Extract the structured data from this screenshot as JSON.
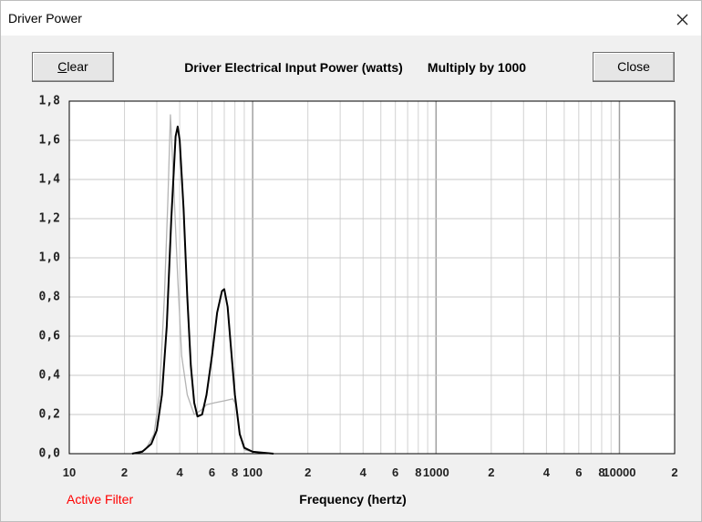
{
  "window": {
    "title": "Driver Power"
  },
  "buttons": {
    "clear": "Clear",
    "close": "Close"
  },
  "status": "Active Filter",
  "chart_data": {
    "type": "line",
    "title": "Driver Electrical Input Power (watts)",
    "multiplier_note": "Multiply by 1000",
    "xlabel": "Frequency (hertz)",
    "xscale": "log",
    "xlim": [
      10,
      20000
    ],
    "xticks": [
      10,
      {
        "value": 20,
        "label": "2"
      },
      {
        "value": 40,
        "label": "4"
      },
      {
        "value": 60,
        "label": "6"
      },
      {
        "value": 80,
        "label": "8"
      },
      100,
      {
        "value": 200,
        "label": "2"
      },
      {
        "value": 400,
        "label": "4"
      },
      {
        "value": 600,
        "label": "6"
      },
      {
        "value": 800,
        "label": "8"
      },
      1000,
      {
        "value": 2000,
        "label": "2"
      },
      {
        "value": 4000,
        "label": "4"
      },
      {
        "value": 6000,
        "label": "6"
      },
      {
        "value": 8000,
        "label": "8"
      },
      10000,
      {
        "value": 20000,
        "label": "2"
      }
    ],
    "x_gridlines": [
      20,
      30,
      40,
      50,
      60,
      70,
      80,
      90,
      100,
      200,
      300,
      400,
      500,
      600,
      700,
      800,
      900,
      1000,
      2000,
      3000,
      4000,
      5000,
      6000,
      7000,
      8000,
      9000,
      10000
    ],
    "major_x_gridlines": [
      100,
      1000,
      10000
    ],
    "ylim": [
      0,
      1.8
    ],
    "yticks": [
      {
        "value": 0,
        "label": "0,0"
      },
      {
        "value": 0.2,
        "label": "0,2"
      },
      {
        "value": 0.4,
        "label": "0,4"
      },
      {
        "value": 0.6,
        "label": "0,6"
      },
      {
        "value": 0.8,
        "label": "0,8"
      },
      {
        "value": 1.0,
        "label": "1,0"
      },
      {
        "value": 1.2,
        "label": "1,2"
      },
      {
        "value": 1.4,
        "label": "1,4"
      },
      {
        "value": 1.6,
        "label": "1,6"
      },
      {
        "value": 1.8,
        "label": "1,8"
      }
    ],
    "grid": true,
    "series": [
      {
        "color": "#b4b4b4",
        "x": [
          22,
          26,
          29,
          31,
          33,
          34.5,
          35.6,
          37,
          39,
          41,
          44,
          48,
          52,
          56,
          62,
          70,
          78,
          81,
          85,
          90,
          100,
          130
        ],
        "values": [
          0,
          0.02,
          0.1,
          0.3,
          0.8,
          1.3,
          1.73,
          1.4,
          0.9,
          0.5,
          0.3,
          0.2,
          0.22,
          0.25,
          0.26,
          0.27,
          0.28,
          0.25,
          0.1,
          0.02,
          0.01,
          0
        ]
      },
      {
        "color": "#000000",
        "x": [
          22,
          25,
          28,
          30,
          32,
          34,
          36,
          38,
          39,
          40,
          42,
          44,
          46,
          48,
          50,
          53,
          56,
          60,
          64,
          68,
          70,
          73,
          76,
          80,
          85,
          90,
          100,
          130
        ],
        "values": [
          0,
          0.01,
          0.05,
          0.12,
          0.3,
          0.65,
          1.2,
          1.62,
          1.67,
          1.6,
          1.25,
          0.8,
          0.45,
          0.26,
          0.19,
          0.2,
          0.3,
          0.5,
          0.72,
          0.83,
          0.84,
          0.75,
          0.55,
          0.3,
          0.1,
          0.03,
          0.01,
          0
        ]
      }
    ]
  }
}
